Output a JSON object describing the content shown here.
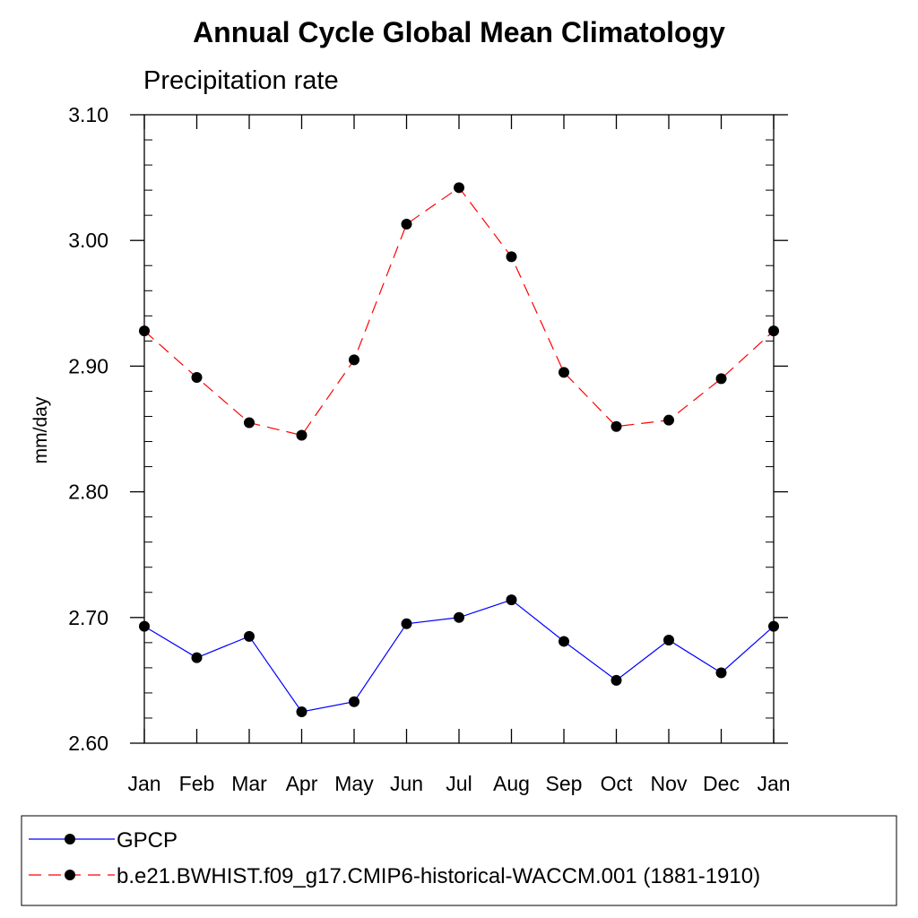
{
  "chart_data": {
    "type": "line",
    "title": "Annual Cycle Global Mean Climatology",
    "subtitle": "Precipitation rate",
    "xlabel": "",
    "ylabel": "mm/day",
    "categories": [
      "Jan",
      "Feb",
      "Mar",
      "Apr",
      "May",
      "Jun",
      "Jul",
      "Aug",
      "Sep",
      "Oct",
      "Nov",
      "Dec",
      "Jan"
    ],
    "yticks": [
      "2.60",
      "2.70",
      "2.80",
      "2.90",
      "3.00",
      "3.10"
    ],
    "ylim": [
      2.6,
      3.1
    ],
    "grid": false,
    "legend_position": "bottom",
    "series": [
      {
        "name": "GPCP",
        "color": "#0000ff",
        "dash": "solid",
        "marker": "filled-circle",
        "values": [
          2.693,
          2.668,
          2.685,
          2.625,
          2.633,
          2.695,
          2.7,
          2.714,
          2.681,
          2.65,
          2.682,
          2.656,
          2.693
        ]
      },
      {
        "name": "b.e21.BWHIST.f09_g17.CMIP6-historical-WACCM.001 (1881-1910)",
        "color": "#ff0000",
        "dash": "dashed",
        "marker": "filled-circle",
        "values": [
          2.928,
          2.891,
          2.855,
          2.845,
          2.905,
          3.013,
          3.042,
          2.987,
          2.895,
          2.852,
          2.857,
          2.89,
          2.928
        ]
      }
    ]
  }
}
